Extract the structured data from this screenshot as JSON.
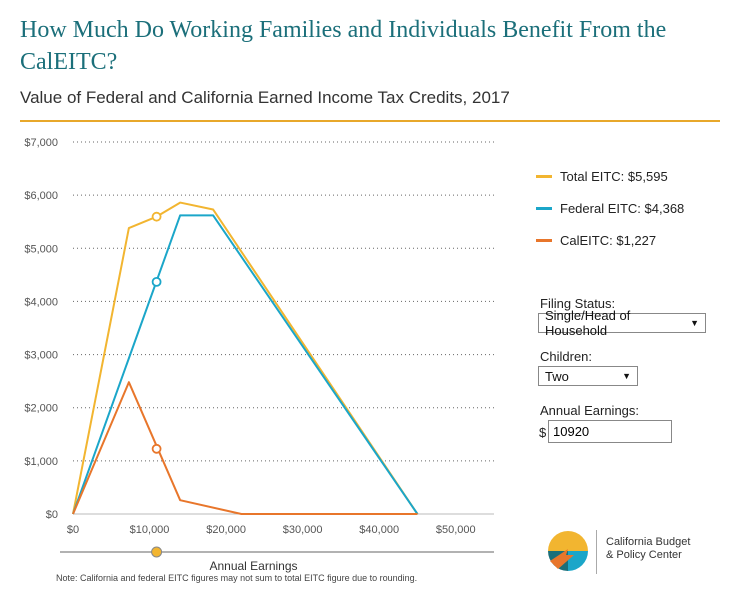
{
  "header": {
    "title": "How Much Do Working Families and Individuals Benefit From the CalEITC?",
    "subtitle": "Value of Federal and California Earned Income Tax Credits, 2017"
  },
  "colors": {
    "total": "#f2b530",
    "federal": "#1ba6c9",
    "cal": "#e8762b",
    "accent": "#e8a82b",
    "title": "#1b6f7a"
  },
  "legend": {
    "total": "Total EITC: $5,595",
    "federal": "Federal EITC: $4,368",
    "cal": "CalEITC: $1,227"
  },
  "controls": {
    "filing_label": "Filing Status:",
    "filing_value": "Single/Head of Household",
    "children_label": "Children:",
    "children_value": "Two",
    "earnings_label": "Annual Earnings:",
    "currency": "$",
    "earnings_value": "10920"
  },
  "chart_data": {
    "type": "line",
    "xlabel": "Annual Earnings",
    "ylabel": "",
    "xlim": [
      0,
      55000
    ],
    "ylim": [
      0,
      7000
    ],
    "x_ticks": [
      "$0",
      "$10,000",
      "$20,000",
      "$30,000",
      "$40,000",
      "$50,000"
    ],
    "y_ticks": [
      "$0",
      "$1,000",
      "$2,000",
      "$3,000",
      "$4,000",
      "$5,000",
      "$6,000",
      "$7,000"
    ],
    "grid": "horizontal dotted",
    "legend_position": "right",
    "slider_value": 10920,
    "series": [
      {
        "name": "Total EITC: $5,595",
        "x": [
          0,
          7300,
          10920,
          14000,
          18300,
          45000
        ],
        "y": [
          0,
          5380,
          5595,
          5860,
          5730,
          0
        ]
      },
      {
        "name": "Federal EITC: $4,368",
        "x": [
          0,
          14000,
          18300,
          45000
        ],
        "y": [
          0,
          5620,
          5620,
          0
        ]
      },
      {
        "name": "CalEITC: $1,227",
        "x": [
          0,
          7300,
          14000,
          22000,
          45000
        ],
        "y": [
          0,
          2480,
          260,
          0,
          0
        ]
      }
    ],
    "markers": [
      {
        "series": 0,
        "x": 10920,
        "y": 5595
      },
      {
        "series": 1,
        "x": 10920,
        "y": 4368
      },
      {
        "series": 2,
        "x": 10920,
        "y": 1227
      }
    ],
    "note": "Note: California and federal EITC figures may not sum to total EITC figure due to rounding."
  },
  "logo": {
    "line1": "California Budget",
    "line2": "& Policy Center"
  }
}
